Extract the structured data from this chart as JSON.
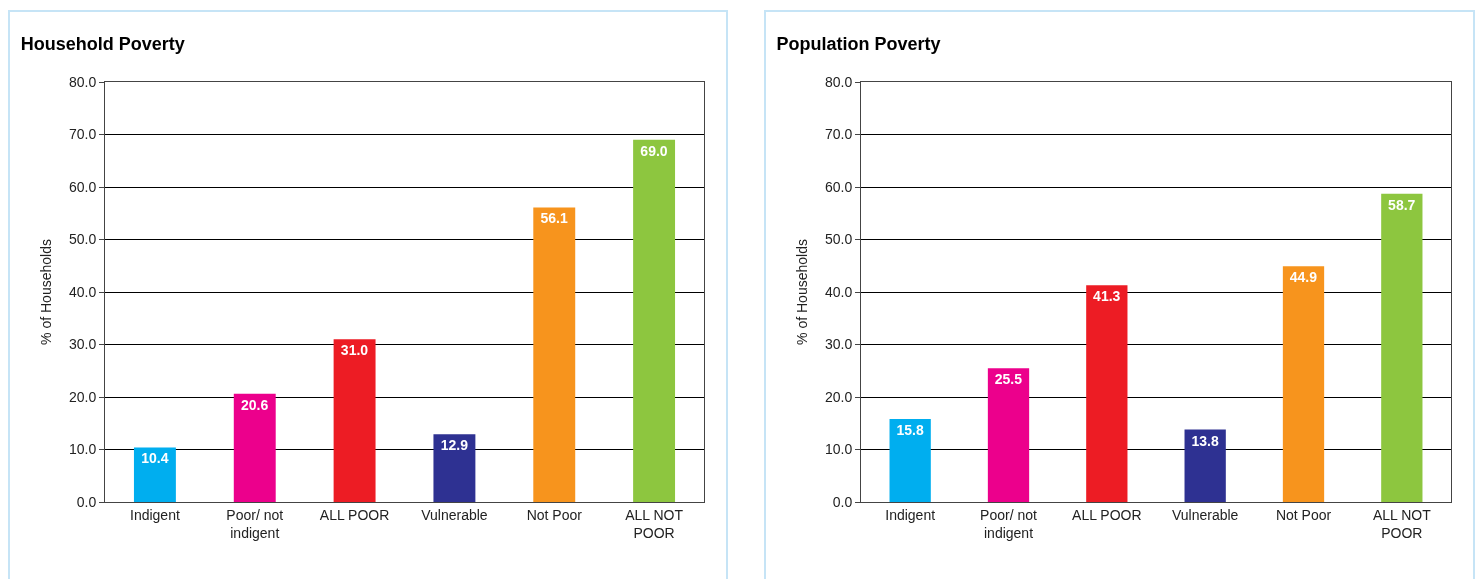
{
  "chart_data": [
    {
      "type": "bar",
      "title": "Household Poverty",
      "ylabel": "% of Households",
      "categories": [
        "Indigent",
        "Poor/ not indigent",
        "ALL POOR",
        "Vulnerable",
        "Not Poor",
        "ALL NOT POOR"
      ],
      "values": [
        10.4,
        20.6,
        31.0,
        12.9,
        56.1,
        69.0
      ],
      "value_labels": [
        "10.4",
        "20.6",
        "31.0",
        "12.9",
        "56.1",
        "69.0"
      ],
      "colors": [
        "#00aeef",
        "#ec008c",
        "#ed1c24",
        "#2e3192",
        "#f7941d",
        "#8dc63f"
      ],
      "ylim": [
        0,
        80
      ],
      "yticks": [
        {
          "value": 0,
          "label": "0.0"
        },
        {
          "value": 10,
          "label": "10.0"
        },
        {
          "value": 20,
          "label": "20.0"
        },
        {
          "value": 30,
          "label": "30.0"
        },
        {
          "value": 40,
          "label": "40.0"
        },
        {
          "value": 50,
          "label": "50.0"
        },
        {
          "value": 60,
          "label": "60.0"
        },
        {
          "value": 70,
          "label": "70.0"
        },
        {
          "value": 80,
          "label": "80.0"
        }
      ],
      "grid": "y"
    },
    {
      "type": "bar",
      "title": "Population Poverty",
      "ylabel": "% of Households",
      "categories": [
        "Indigent",
        "Poor/ not indigent",
        "ALL POOR",
        "Vulnerable",
        "Not Poor",
        "ALL NOT POOR"
      ],
      "values": [
        15.8,
        25.5,
        41.3,
        13.8,
        44.9,
        58.7
      ],
      "value_labels": [
        "15.8",
        "25.5",
        "41.3",
        "13.8",
        "44.9",
        "58.7"
      ],
      "colors": [
        "#00aeef",
        "#ec008c",
        "#ed1c24",
        "#2e3192",
        "#f7941d",
        "#8dc63f"
      ],
      "ylim": [
        0,
        80
      ],
      "yticks": [
        {
          "value": 0,
          "label": "0.0"
        },
        {
          "value": 10,
          "label": "10.0"
        },
        {
          "value": 20,
          "label": "20.0"
        },
        {
          "value": 30,
          "label": "30.0"
        },
        {
          "value": 40,
          "label": "40.0"
        },
        {
          "value": 50,
          "label": "50.0"
        },
        {
          "value": 60,
          "label": "60.0"
        },
        {
          "value": 70,
          "label": "70.0"
        },
        {
          "value": 80,
          "label": "80.0"
        }
      ],
      "grid": "y"
    }
  ]
}
